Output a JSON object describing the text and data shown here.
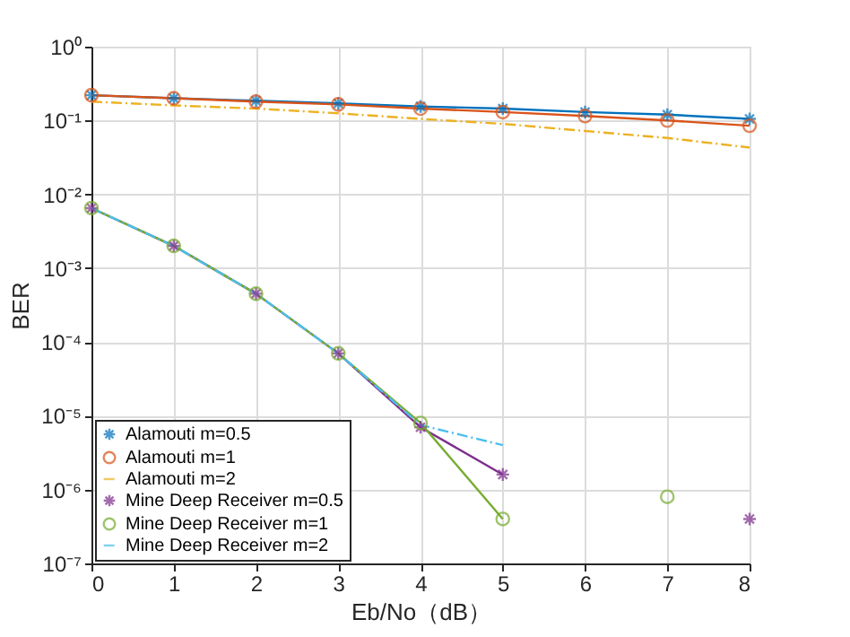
{
  "chart_data": {
    "type": "line",
    "xlabel": "Eb/No（dB）",
    "ylabel": "BER",
    "x": [
      0,
      1,
      2,
      3,
      4,
      5,
      6,
      7,
      8
    ],
    "xlim": [
      0,
      8
    ],
    "xticks": [
      0,
      1,
      2,
      3,
      4,
      5,
      6,
      7,
      8
    ],
    "ylim": [
      1e-07,
      1
    ],
    "log": true,
    "yticks": [
      {
        "value": 1e-07,
        "label": "10⁻⁷"
      },
      {
        "value": 1e-06,
        "label": "10⁻⁶"
      },
      {
        "value": 1e-05,
        "label": "10⁻⁵"
      },
      {
        "value": 0.0001,
        "label": "10⁻⁴"
      },
      {
        "value": 0.001,
        "label": "10⁻³"
      },
      {
        "value": 0.01,
        "label": "10⁻²"
      },
      {
        "value": 0.1,
        "label": "10⁻¹"
      },
      {
        "value": 1,
        "label": "10⁰"
      }
    ],
    "grid": true,
    "legend": "bottom left",
    "series": [
      {
        "name": "Alamouti m=0.5",
        "color": "#0072bd",
        "marker": "cross",
        "line_style": "solid",
        "values": [
          0.22,
          0.2,
          0.185,
          0.17,
          0.155,
          0.145,
          0.13,
          0.12,
          0.105
        ]
      },
      {
        "name": "Alamouti m=1",
        "color": "#d95319",
        "marker": "circle",
        "line_style": "solid",
        "values": [
          0.22,
          0.2,
          0.18,
          0.165,
          0.145,
          0.13,
          0.115,
          0.1,
          0.085
        ]
      },
      {
        "name": "Alamouti m=2",
        "color": "#edb120",
        "marker": "none",
        "line_style": "dashdot",
        "values": [
          0.18,
          0.16,
          0.145,
          0.125,
          0.105,
          0.09,
          0.072,
          0.058,
          0.043
        ]
      },
      {
        "name": "Mine Deep Receiver m=0.5",
        "color": "#7e2f8e",
        "marker": "cross",
        "line_style": "solid",
        "values": [
          0.0065,
          0.002,
          0.00045,
          7e-05,
          7e-06,
          1.6e-06,
          null,
          null,
          4e-07
        ]
      },
      {
        "name": "Mine Deep Receiver m=1",
        "color": "#77ac30",
        "marker": "circle",
        "line_style": "solid",
        "values": [
          0.0065,
          0.002,
          0.00045,
          7e-05,
          8e-06,
          4e-07,
          null,
          8e-07,
          null
        ]
      },
      {
        "name": "Mine Deep Receiver m=2",
        "color": "#4dbeee",
        "marker": "none",
        "line_style": "dashdot",
        "values": [
          0.0065,
          0.002,
          0.00045,
          7e-05,
          7.5e-06,
          4e-06,
          null,
          null,
          null
        ]
      }
    ]
  }
}
